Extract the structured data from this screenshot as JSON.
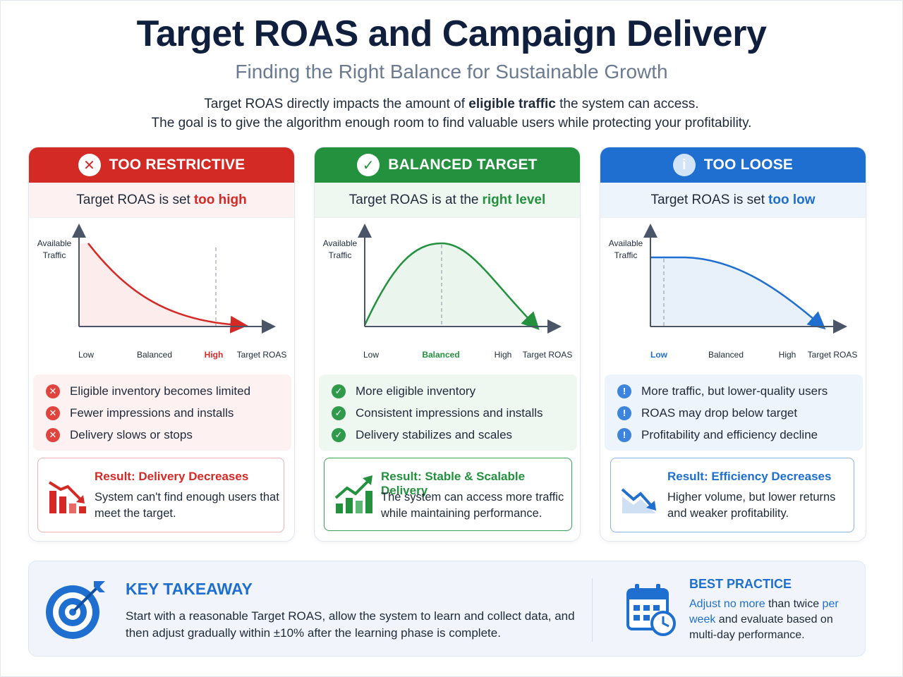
{
  "header": {
    "title": "Target ROAS and Campaign Delivery",
    "subtitle": "Finding the Right Balance for Sustainable Growth",
    "intro_line1_a": "Target ROAS directly impacts the amount of ",
    "intro_line1_bold": "eligible traffic",
    "intro_line1_b": " the system can access.",
    "intro_line2": "The goal is to give the algorithm enough room to find valuable users while protecting your profitability."
  },
  "cards": [
    {
      "header": "TOO RESTRICTIVE",
      "icon": "x-circle-icon",
      "sub_a": "Target ROAS is set",
      "sub_hl": "too high",
      "chart": {
        "ylabel_1": "Available",
        "ylabel_2": "Traffic",
        "xlabel": "Target ROAS",
        "ticks": [
          "Low",
          "Balanced",
          "High"
        ],
        "highlight_tick": "High",
        "marker_tick": "High",
        "shape": "decreasing-convex"
      },
      "bullets": [
        "Eligible inventory becomes limited",
        "Fewer impressions and installs",
        "Delivery slows or stops"
      ],
      "result_title": "Result: Delivery Decreases",
      "result_text": "System can't find enough users that meet the target.",
      "color": "#d42a26"
    },
    {
      "header": "BALANCED TARGET",
      "icon": "check-circle-icon",
      "sub_a": "Target ROAS is at the",
      "sub_hl": "right level",
      "chart": {
        "ylabel_1": "Available",
        "ylabel_2": "Traffic",
        "xlabel": "Target ROAS",
        "ticks": [
          "Low",
          "Balanced",
          "High"
        ],
        "highlight_tick": "Balanced",
        "marker_tick": "Balanced",
        "shape": "peak"
      },
      "bullets": [
        "More eligible inventory",
        "Consistent impressions and installs",
        "Delivery stabilizes and scales"
      ],
      "result_title": "Result: Stable & Scalable Delivery",
      "result_text": "The system can access more traffic while maintaining performance.",
      "color": "#24913f"
    },
    {
      "header": "TOO LOOSE",
      "icon": "info-circle-icon",
      "sub_a": "Target ROAS is set",
      "sub_hl": "too low",
      "chart": {
        "ylabel_1": "Available",
        "ylabel_2": "Traffic",
        "xlabel": "Target ROAS",
        "ticks": [
          "Low",
          "Balanced",
          "High"
        ],
        "highlight_tick": "Low",
        "marker_tick": "Low",
        "shape": "decreasing-concave"
      },
      "bullets": [
        "More traffic, but lower-quality users",
        "ROAS may drop below target",
        "Profitability and efficiency decline"
      ],
      "result_title": "Result: Efficiency Decreases",
      "result_text": "Higher volume, but lower returns and weaker profitability.",
      "color": "#1e6fd0"
    }
  ],
  "takeaway": {
    "title": "KEY TAKEAWAY",
    "text": "Start with a reasonable Target ROAS, allow the system to learn and collect data, and then adjust gradually within ±10% after the learning phase is complete."
  },
  "best_practice": {
    "title": "BEST PRACTICE",
    "text_blue_1": "Adjust no more",
    "text_1": " than twice",
    "text_blue_2": "per week",
    "text_2": " and evaluate based on multi-day performance."
  }
}
